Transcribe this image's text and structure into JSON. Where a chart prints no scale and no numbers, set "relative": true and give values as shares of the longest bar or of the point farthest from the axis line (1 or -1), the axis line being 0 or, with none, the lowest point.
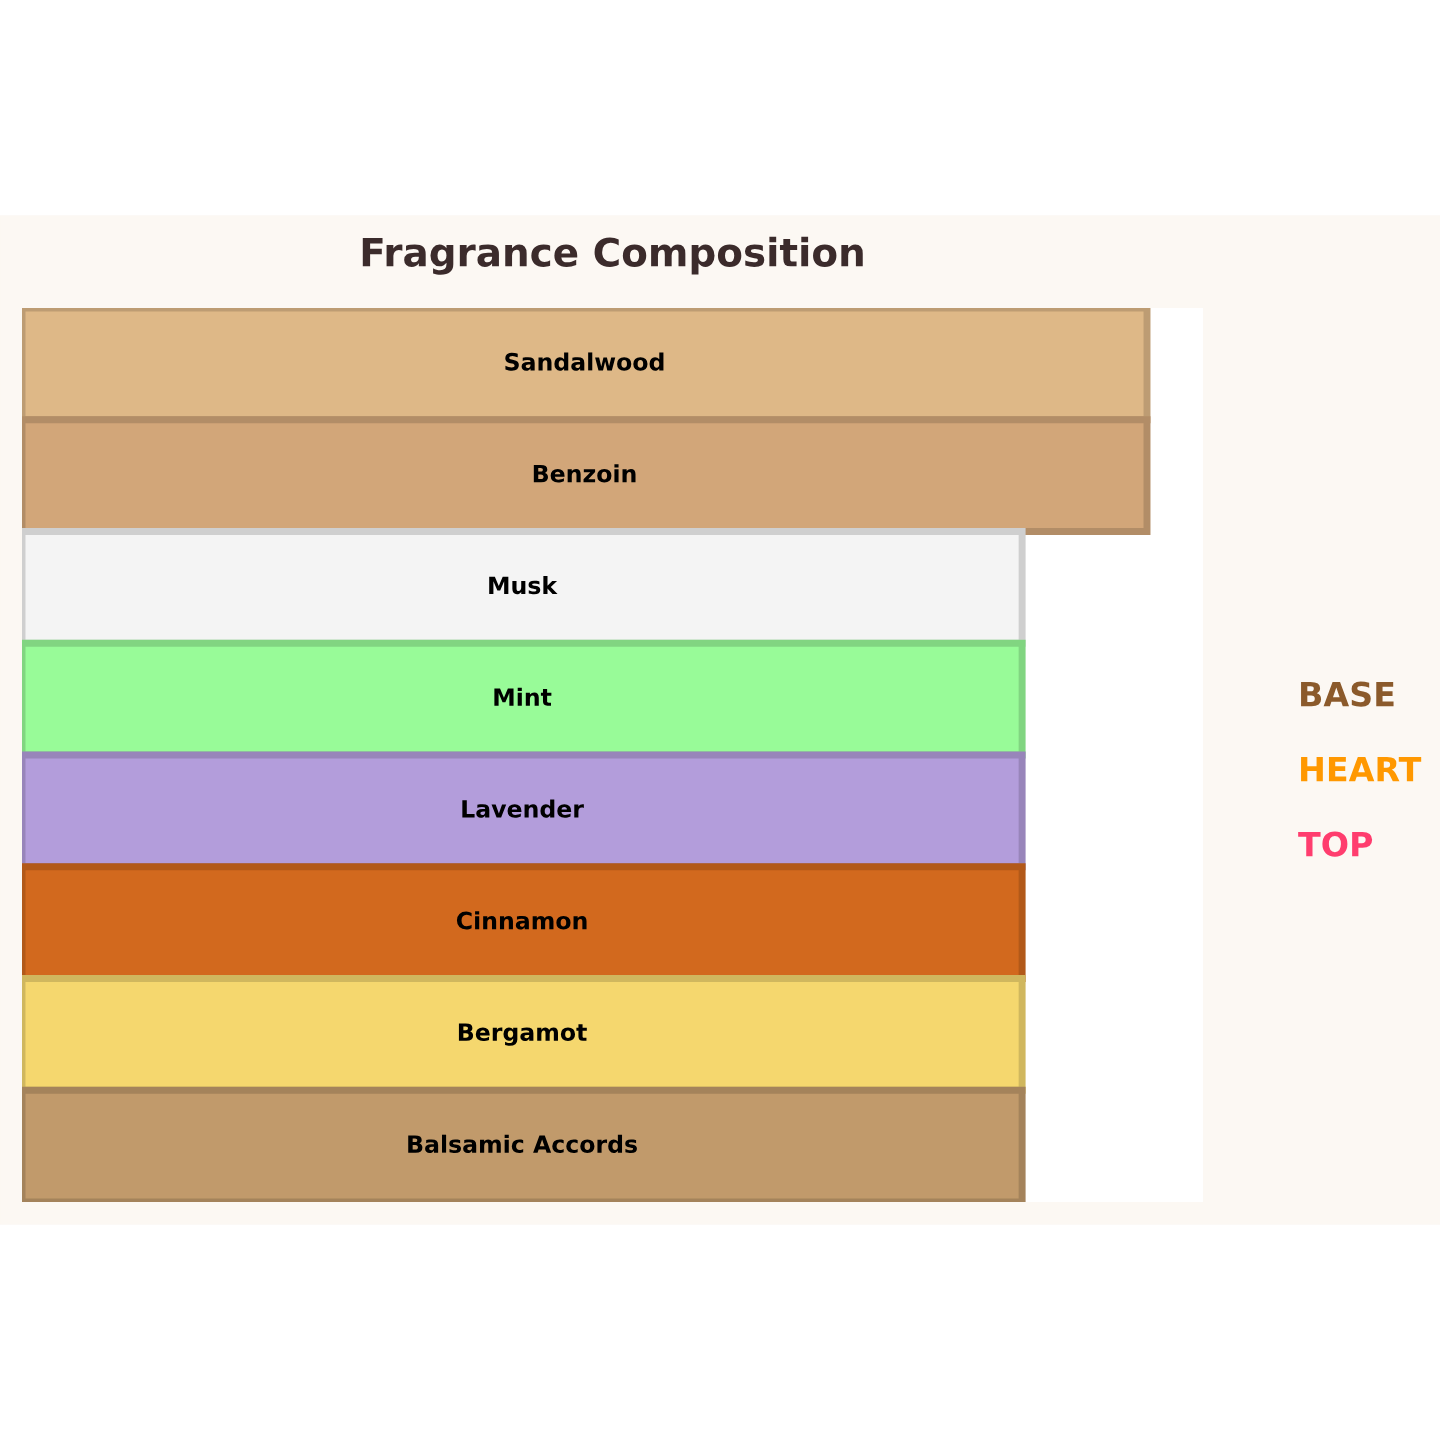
{
  "chart_data": {
    "type": "bar",
    "orientation": "horizontal",
    "relative": true,
    "title": "Fragrance Composition",
    "categories": [
      "Sandalwood",
      "Benzoin",
      "Musk",
      "Mint",
      "Lavender",
      "Cinnamon",
      "Bergamot",
      "Balsamic Accords"
    ],
    "values": [
      1,
      1,
      0.889,
      0.889,
      0.889,
      0.889,
      0.889,
      0.889
    ],
    "colors": [
      "#deb887",
      "#d2a679",
      "#f4f4f4",
      "#98fb98",
      "#b39ddb",
      "#d2691e",
      "#f5d76e",
      "#c19a6b"
    ],
    "annotations": [
      "BASE",
      "HEART",
      "TOP"
    ]
  }
}
